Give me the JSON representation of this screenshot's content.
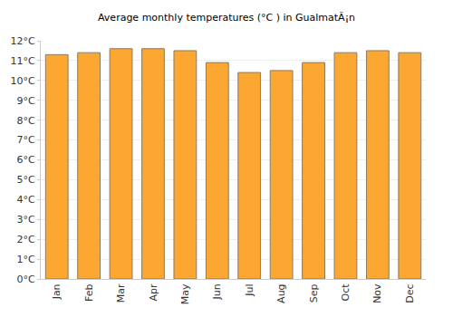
{
  "chart_data": {
    "type": "bar",
    "title": "Average monthly temperatures (°C ) in GualmatÃ¡n",
    "categories": [
      "Jan",
      "Feb",
      "Mar",
      "Apr",
      "May",
      "Jun",
      "Jul",
      "Aug",
      "Sep",
      "Oct",
      "Nov",
      "Dec"
    ],
    "values": [
      11.3,
      11.4,
      11.6,
      11.6,
      11.5,
      10.9,
      10.4,
      10.5,
      10.9,
      11.4,
      11.5,
      11.4
    ],
    "color": "#fba732",
    "ylim": [
      0,
      12
    ],
    "yticks": [
      {
        "value": 0,
        "label": "0°C"
      },
      {
        "value": 1,
        "label": "1°C"
      },
      {
        "value": 2,
        "label": "2°C"
      },
      {
        "value": 3,
        "label": "3°C"
      },
      {
        "value": 4,
        "label": "4°C"
      },
      {
        "value": 5,
        "label": "5°C"
      },
      {
        "value": 6,
        "label": "6°C"
      },
      {
        "value": 7,
        "label": "7°C"
      },
      {
        "value": 8,
        "label": "8°C"
      },
      {
        "value": 9,
        "label": "9°C"
      },
      {
        "value": 10,
        "label": "10°C"
      },
      {
        "value": 11,
        "label": "11°C"
      },
      {
        "value": 12,
        "label": "12°C"
      }
    ],
    "grid": true
  }
}
